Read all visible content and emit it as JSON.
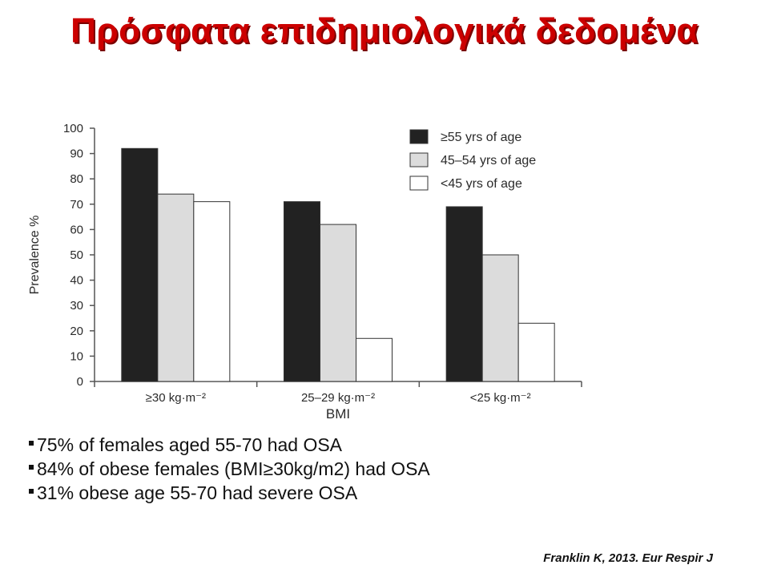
{
  "slide": {
    "title": "Πρόσφατα επιδημιολογικά δεδομένα",
    "bullets": [
      "75% of females aged 55-70 had OSA",
      "84% of obese females (BMI≥30kg/m2) had OSA",
      "31% obese age 55-70 had severe OSA"
    ],
    "citation": "Franklin K, 2013. Eur Respir J"
  },
  "chart_data": {
    "type": "bar",
    "title": "",
    "xlabel": "BMI",
    "ylabel": "Prevalence %",
    "ylim": [
      0,
      100
    ],
    "yticks": [
      "0",
      "10",
      "20",
      "30",
      "40",
      "50",
      "60",
      "70",
      "80",
      "90",
      "100"
    ],
    "categories": [
      "≥30 kg·m⁻²",
      "25–29 kg·m⁻²",
      "<25 kg·m⁻²"
    ],
    "series": [
      {
        "name": "≥55 yrs of age",
        "values": [
          92,
          71,
          69
        ],
        "color": "#222222"
      },
      {
        "name": "45–54 yrs of age",
        "values": [
          74,
          62,
          50
        ],
        "color": "#dcdcdc"
      },
      {
        "name": "<45 yrs of age",
        "values": [
          71,
          17,
          23
        ],
        "color": "#ffffff"
      }
    ],
    "grid": false,
    "legend": "top-right"
  }
}
